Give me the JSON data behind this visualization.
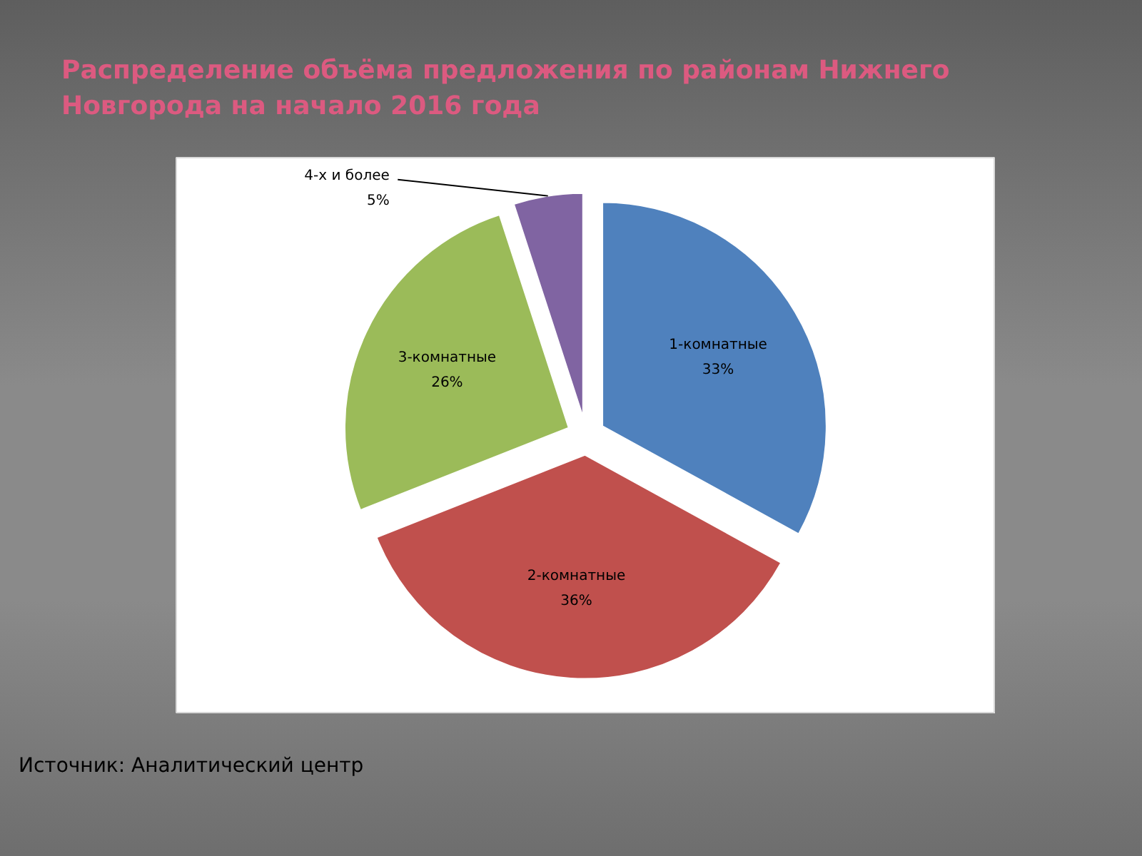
{
  "chart_data": {
    "type": "pie",
    "title": "Распределение объёма предложения по районам Нижнего Новгорода на начало 2016 года",
    "categories": [
      "1-комнатные",
      "2-комнатные",
      "3-комнатные",
      "4-х и более"
    ],
    "values": [
      33,
      36,
      26,
      5
    ],
    "colors": [
      "#4f81bd",
      "#c0504d",
      "#9bbb59",
      "#8064a2"
    ],
    "value_labels": [
      "33%",
      "36%",
      "26%",
      "5%"
    ],
    "annotations": [
      "Источник: Аналитический центр"
    ]
  }
}
